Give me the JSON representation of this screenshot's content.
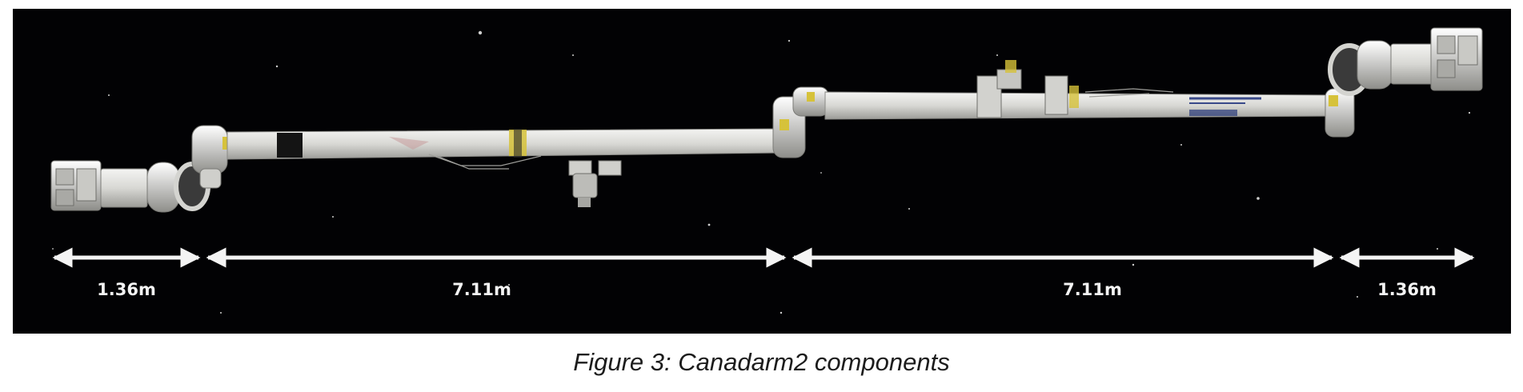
{
  "figure": {
    "caption": "Figure 3: Canadarm2 components",
    "background_color": "#020204",
    "arm_color": "#dcdcd8",
    "dimension_color": "#f4f4f4",
    "segments": [
      {
        "id": "end-effector-a",
        "length_label": "1.36m"
      },
      {
        "id": "boom-a",
        "length_label": "7.11m"
      },
      {
        "id": "boom-b",
        "length_label": "7.11m"
      },
      {
        "id": "end-effector-b",
        "length_label": "1.36m"
      }
    ]
  }
}
